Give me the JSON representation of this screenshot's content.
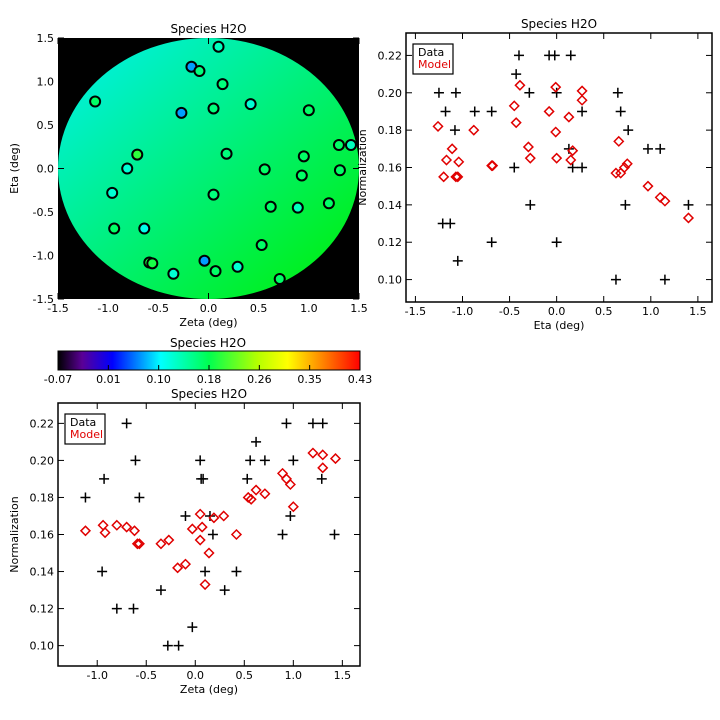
{
  "chart_data": [
    {
      "type": "heatmap",
      "title": "Species H2O",
      "xlabel": "Zeta (deg)",
      "ylabel": "Eta (deg)",
      "xlim": [
        -1.5,
        1.5
      ],
      "ylim": [
        -1.5,
        1.5
      ],
      "xticks": [
        "-1.5",
        "-1.0",
        "-0.5",
        "0.0",
        "0.5",
        "1.0",
        "1.5"
      ],
      "yticks": [
        "-1.5",
        "-1.0",
        "-0.5",
        "0.0",
        "0.5",
        "1.0",
        "1.5"
      ],
      "field_colors": {
        "top_left": "#00f0f0",
        "bottom_right": "#00f000"
      },
      "points": [
        {
          "zeta": 0.1,
          "eta": 1.4,
          "value": 0.13
        },
        {
          "zeta": -0.17,
          "eta": 1.17,
          "value": 0.07
        },
        {
          "zeta": -0.09,
          "eta": 1.12,
          "value": 0.16
        },
        {
          "zeta": 0.14,
          "eta": 0.97,
          "value": 0.16
        },
        {
          "zeta": -1.13,
          "eta": 0.77,
          "value": 0.17
        },
        {
          "zeta": 0.42,
          "eta": 0.74,
          "value": 0.12
        },
        {
          "zeta": -0.27,
          "eta": 0.64,
          "value": 0.07
        },
        {
          "zeta": 0.05,
          "eta": 0.69,
          "value": 0.16
        },
        {
          "zeta": 1.0,
          "eta": 0.67,
          "value": 0.17
        },
        {
          "zeta": 1.3,
          "eta": 0.27,
          "value": 0.17
        },
        {
          "zeta": 1.42,
          "eta": 0.27,
          "value": 0.13
        },
        {
          "zeta": -0.71,
          "eta": 0.16,
          "value": 0.2
        },
        {
          "zeta": 0.18,
          "eta": 0.17,
          "value": 0.16
        },
        {
          "zeta": 0.95,
          "eta": 0.14,
          "value": 0.17
        },
        {
          "zeta": -0.81,
          "eta": 0.0,
          "value": 0.12
        },
        {
          "zeta": 0.56,
          "eta": -0.01,
          "value": 0.17
        },
        {
          "zeta": 1.31,
          "eta": -0.02,
          "value": 0.17
        },
        {
          "zeta": 0.93,
          "eta": -0.08,
          "value": 0.17
        },
        {
          "zeta": -0.96,
          "eta": -0.28,
          "value": 0.12
        },
        {
          "zeta": 0.05,
          "eta": -0.3,
          "value": 0.16
        },
        {
          "zeta": 1.2,
          "eta": -0.4,
          "value": 0.17
        },
        {
          "zeta": 0.62,
          "eta": -0.44,
          "value": 0.17
        },
        {
          "zeta": 0.89,
          "eta": -0.45,
          "value": 0.13
        },
        {
          "zeta": -0.94,
          "eta": -0.69,
          "value": 0.17
        },
        {
          "zeta": -0.64,
          "eta": -0.69,
          "value": 0.11
        },
        {
          "zeta": 0.53,
          "eta": -0.88,
          "value": 0.17
        },
        {
          "zeta": -0.59,
          "eta": -1.08,
          "value": 0.19
        },
        {
          "zeta": -0.56,
          "eta": -1.09,
          "value": 0.19
        },
        {
          "zeta": -0.04,
          "eta": -1.06,
          "value": 0.07
        },
        {
          "zeta": 0.07,
          "eta": -1.18,
          "value": 0.17
        },
        {
          "zeta": 0.29,
          "eta": -1.13,
          "value": 0.12
        },
        {
          "zeta": -0.35,
          "eta": -1.21,
          "value": 0.12
        },
        {
          "zeta": 0.71,
          "eta": -1.27,
          "value": 0.17
        }
      ],
      "colorbar": {
        "title": "Species H2O",
        "range": [
          -0.07,
          0.43
        ],
        "ticks": [
          "-0.07",
          "0.01",
          "0.10",
          "0.18",
          "0.26",
          "0.35",
          "0.43"
        ]
      }
    },
    {
      "type": "scatter",
      "title": "Species H2O",
      "xlabel": "Eta (deg)",
      "ylabel": "Normalization",
      "xlim": [
        -1.6,
        1.65
      ],
      "ylim": [
        0.088,
        0.232
      ],
      "xticks": [
        "-1.5",
        "-1.0",
        "-0.5",
        "0.0",
        "0.5",
        "1.0",
        "1.5"
      ],
      "yticks": [
        "0.10",
        "0.12",
        "0.14",
        "0.16",
        "0.18",
        "0.20",
        "0.22"
      ],
      "legend": {
        "position": "top-left",
        "entries": [
          "Data",
          "Model"
        ]
      },
      "series": [
        {
          "name": "Data",
          "marker": "plus",
          "color": "#000000",
          "points": [
            [
              -1.25,
              0.2
            ],
            [
              -1.18,
              0.19
            ],
            [
              -1.07,
              0.2
            ],
            [
              -1.08,
              0.18
            ],
            [
              -0.87,
              0.19
            ],
            [
              -0.69,
              0.19
            ],
            [
              -0.43,
              0.21
            ],
            [
              -0.4,
              0.22
            ],
            [
              -0.29,
              0.2
            ],
            [
              -0.08,
              0.22
            ],
            [
              -0.02,
              0.22
            ],
            [
              0.15,
              0.22
            ],
            [
              0.0,
              0.2
            ],
            [
              0.27,
              0.19
            ],
            [
              -0.45,
              0.16
            ],
            [
              0.13,
              0.17
            ],
            [
              0.17,
              0.16
            ],
            [
              0.27,
              0.16
            ],
            [
              -0.28,
              0.14
            ],
            [
              -1.21,
              0.13
            ],
            [
              -1.13,
              0.13
            ],
            [
              -1.05,
              0.11
            ],
            [
              -0.69,
              0.12
            ],
            [
              0.0,
              0.12
            ],
            [
              0.65,
              0.2
            ],
            [
              0.68,
              0.19
            ],
            [
              0.76,
              0.18
            ],
            [
              0.97,
              0.17
            ],
            [
              1.1,
              0.17
            ],
            [
              0.73,
              0.14
            ],
            [
              1.4,
              0.14
            ],
            [
              0.63,
              0.1
            ],
            [
              1.15,
              0.1
            ]
          ]
        },
        {
          "name": "Model",
          "marker": "diamond",
          "color": "#e00000",
          "points": [
            [
              -1.26,
              0.182
            ],
            [
              -1.2,
              0.155
            ],
            [
              -1.17,
              0.164
            ],
            [
              -1.11,
              0.17
            ],
            [
              -1.07,
              0.155
            ],
            [
              -1.05,
              0.155
            ],
            [
              -1.04,
              0.163
            ],
            [
              -0.88,
              0.18
            ],
            [
              -0.69,
              0.161
            ],
            [
              -0.68,
              0.161
            ],
            [
              -0.45,
              0.193
            ],
            [
              -0.43,
              0.184
            ],
            [
              -0.39,
              0.204
            ],
            [
              -0.3,
              0.171
            ],
            [
              -0.28,
              0.165
            ],
            [
              -0.08,
              0.19
            ],
            [
              -0.01,
              0.203
            ],
            [
              -0.01,
              0.179
            ],
            [
              0.0,
              0.165
            ],
            [
              0.13,
              0.187
            ],
            [
              0.15,
              0.164
            ],
            [
              0.17,
              0.169
            ],
            [
              0.27,
              0.201
            ],
            [
              0.27,
              0.196
            ],
            [
              0.63,
              0.157
            ],
            [
              0.66,
              0.174
            ],
            [
              0.68,
              0.157
            ],
            [
              0.72,
              0.16
            ],
            [
              0.75,
              0.162
            ],
            [
              0.97,
              0.15
            ],
            [
              1.1,
              0.144
            ],
            [
              1.15,
              0.142
            ],
            [
              1.4,
              0.133
            ]
          ]
        }
      ]
    },
    {
      "type": "scatter",
      "title": "Species H2O",
      "xlabel": "Zeta (deg)",
      "ylabel": "Normalization",
      "xlim": [
        -1.4,
        1.68
      ],
      "ylim": [
        0.089,
        0.231
      ],
      "xticks": [
        "-1.0",
        "-0.5",
        "0.0",
        "0.5",
        "1.0",
        "1.5"
      ],
      "yticks": [
        "0.10",
        "0.12",
        "0.14",
        "0.16",
        "0.18",
        "0.20",
        "0.22"
      ],
      "legend": {
        "position": "top-left",
        "entries": [
          "Data",
          "Model"
        ]
      },
      "series": [
        {
          "name": "Data",
          "marker": "plus",
          "color": "#000000",
          "points": [
            [
              -1.12,
              0.18
            ],
            [
              -0.93,
              0.19
            ],
            [
              -0.95,
              0.14
            ],
            [
              -0.8,
              0.12
            ],
            [
              -0.7,
              0.22
            ],
            [
              -0.61,
              0.2
            ],
            [
              -0.57,
              0.18
            ],
            [
              -0.63,
              0.12
            ],
            [
              -0.35,
              0.13
            ],
            [
              -0.28,
              0.1
            ],
            [
              -0.17,
              0.1
            ],
            [
              -0.1,
              0.17
            ],
            [
              -0.03,
              0.11
            ],
            [
              0.05,
              0.2
            ],
            [
              0.06,
              0.19
            ],
            [
              0.08,
              0.19
            ],
            [
              0.15,
              0.17
            ],
            [
              0.18,
              0.16
            ],
            [
              0.1,
              0.14
            ],
            [
              0.3,
              0.13
            ],
            [
              0.42,
              0.14
            ],
            [
              0.53,
              0.19
            ],
            [
              0.56,
              0.2
            ],
            [
              0.62,
              0.21
            ],
            [
              0.71,
              0.2
            ],
            [
              0.89,
              0.16
            ],
            [
              0.93,
              0.22
            ],
            [
              0.97,
              0.17
            ],
            [
              1.0,
              0.2
            ],
            [
              1.2,
              0.22
            ],
            [
              1.3,
              0.22
            ],
            [
              1.29,
              0.19
            ],
            [
              1.42,
              0.16
            ]
          ]
        },
        {
          "name": "Model",
          "marker": "diamond",
          "color": "#e00000",
          "points": [
            [
              -1.12,
              0.162
            ],
            [
              -0.94,
              0.165
            ],
            [
              -0.92,
              0.161
            ],
            [
              -0.8,
              0.165
            ],
            [
              -0.7,
              0.164
            ],
            [
              -0.62,
              0.162
            ],
            [
              -0.59,
              0.155
            ],
            [
              -0.57,
              0.155
            ],
            [
              -0.35,
              0.155
            ],
            [
              -0.27,
              0.157
            ],
            [
              -0.18,
              0.142
            ],
            [
              -0.1,
              0.144
            ],
            [
              -0.03,
              0.163
            ],
            [
              0.05,
              0.171
            ],
            [
              0.05,
              0.157
            ],
            [
              0.07,
              0.164
            ],
            [
              0.1,
              0.133
            ],
            [
              0.14,
              0.15
            ],
            [
              0.19,
              0.169
            ],
            [
              0.29,
              0.17
            ],
            [
              0.42,
              0.16
            ],
            [
              0.54,
              0.18
            ],
            [
              0.57,
              0.179
            ],
            [
              0.62,
              0.184
            ],
            [
              0.71,
              0.182
            ],
            [
              0.89,
              0.193
            ],
            [
              0.93,
              0.19
            ],
            [
              0.97,
              0.187
            ],
            [
              1.0,
              0.175
            ],
            [
              1.2,
              0.204
            ],
            [
              1.3,
              0.203
            ],
            [
              1.3,
              0.196
            ],
            [
              1.43,
              0.201
            ]
          ]
        }
      ]
    }
  ]
}
